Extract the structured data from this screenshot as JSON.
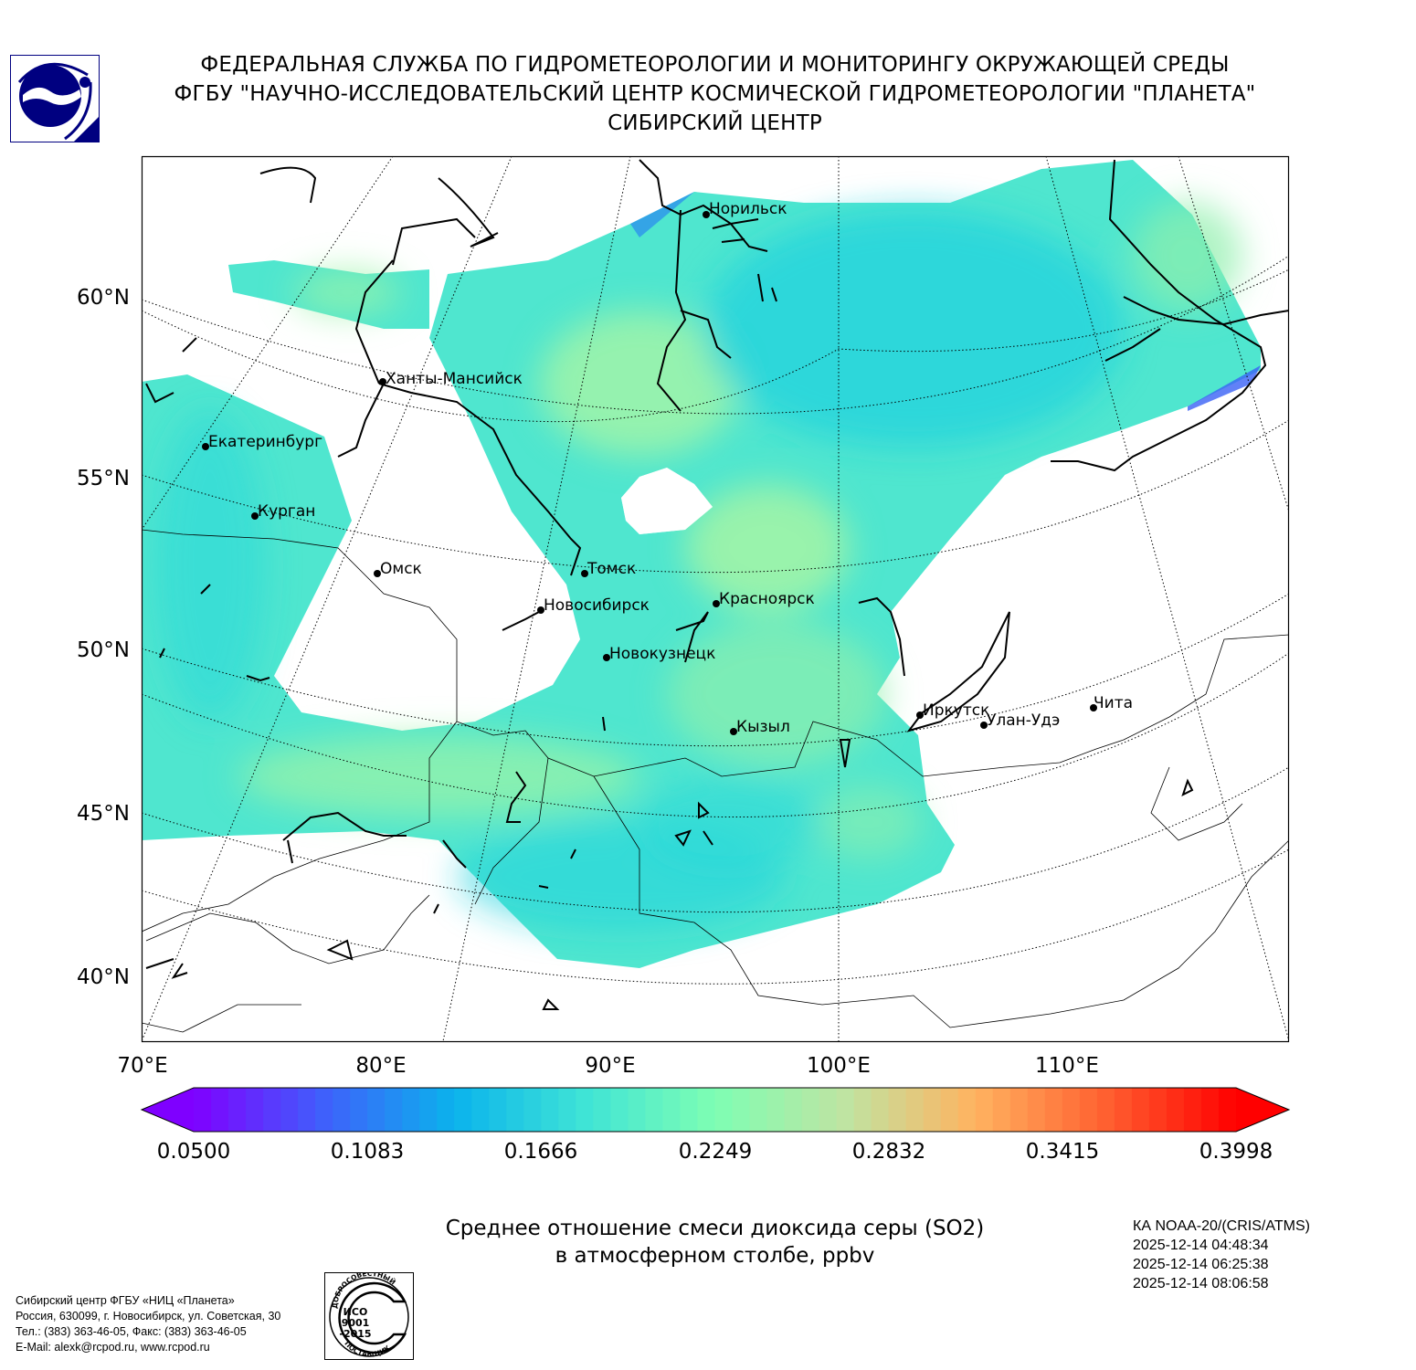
{
  "header": {
    "line1": "ФЕДЕРАЛЬНАЯ СЛУЖБА ПО ГИДРОМЕТЕОРОЛОГИИ И МОНИТОРИНГУ ОКРУЖАЮЩЕЙ СРЕДЫ",
    "line2": "ФГБУ \"НАУЧНО-ИССЛЕДОВАТЕЛЬСКИЙ ЦЕНТР КОСМИЧЕСКОЙ ГИДРОМЕТЕОРОЛОГИИ \"ПЛАНЕТА\"",
    "line3": "СИБИРСКИЙ ЦЕНТР",
    "logo_icon": "planeta-logo-icon"
  },
  "map": {
    "lat_labels": [
      "60°N",
      "55°N",
      "50°N",
      "45°N",
      "40°N"
    ],
    "lon_labels": [
      "70°E",
      "80°E",
      "90°E",
      "100°E",
      "110°E"
    ],
    "cities": [
      {
        "name": "Норильск"
      },
      {
        "name": "Ханты-Мансийск"
      },
      {
        "name": "Екатеринбург"
      },
      {
        "name": "Курган"
      },
      {
        "name": "Омск"
      },
      {
        "name": "Томск"
      },
      {
        "name": "Новосибирск"
      },
      {
        "name": "Красноярск"
      },
      {
        "name": "Новокузнецк"
      },
      {
        "name": "Кызыл"
      },
      {
        "name": "Иркутск"
      },
      {
        "name": "Улан-Удэ"
      },
      {
        "name": "Чита"
      }
    ]
  },
  "colorbar": {
    "ticks": [
      "0.0500",
      "0.1083",
      "0.1666",
      "0.2249",
      "0.2832",
      "0.3415",
      "0.3998"
    ],
    "min": 0.05,
    "max": 0.3998,
    "colors": [
      "#7f00ff",
      "#3f60fb",
      "#0ab3ec",
      "#3fe4d6",
      "#7efeb3",
      "#bfe4a2",
      "#ffb360",
      "#ff6030",
      "#ff0000"
    ]
  },
  "title": {
    "line1": "Среднее отношение смеси диоксида серы (SO2)",
    "line2": "в атмосферном столбе, ppbv"
  },
  "satellite": {
    "name": "КА NOAA-20/(CRIS/ATMS)",
    "times": [
      "2025-12-14 04:48:34",
      "2025-12-14 06:25:38",
      "2025-12-14 08:06:58"
    ]
  },
  "contact": {
    "line1": "Сибирский центр ФГБУ «НИЦ «Планета»",
    "line2": "Россия, 630099, г. Новосибирск, ул. Советская, 30",
    "line3": "Тел.: (383) 363-46-05, Факс: (383) 363-46-05",
    "line4": "E-Mail: alexk@rcpod.ru, www.rcpod.ru"
  },
  "iso_badge": {
    "top_text": "ДОБРОСОВЕСТНЫЙ",
    "iso": "ИСО",
    "number": "9001",
    "year": "-2015",
    "bottom_text": "ПОСТАВЩИК"
  }
}
